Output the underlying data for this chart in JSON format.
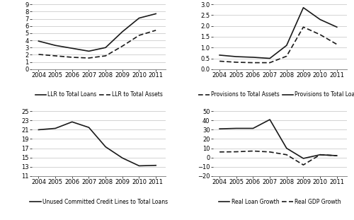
{
  "years": [
    2004,
    2005,
    2006,
    2007,
    2008,
    2009,
    2010,
    2011
  ],
  "panel1": {
    "llr_total_loans": [
      3.9,
      3.3,
      2.9,
      2.5,
      3.0,
      5.2,
      7.1,
      7.7
    ],
    "llr_total_assets": [
      2.05,
      1.85,
      1.65,
      1.55,
      1.85,
      3.2,
      4.7,
      5.4
    ],
    "ylim": [
      0,
      9
    ],
    "yticks": [
      0,
      1,
      2,
      3,
      4,
      5,
      6,
      7,
      8,
      9
    ],
    "legend": [
      [
        "LLR to Total Loans",
        "-"
      ],
      [
        "LLR to Total Assets",
        "--"
      ]
    ]
  },
  "panel2": {
    "prov_total_loans": [
      0.65,
      0.58,
      0.55,
      0.5,
      1.1,
      2.85,
      2.3,
      1.95
    ],
    "prov_total_assets": [
      0.37,
      0.32,
      0.3,
      0.3,
      0.6,
      1.95,
      1.6,
      1.15
    ],
    "ylim": [
      0,
      3
    ],
    "yticks": [
      0,
      0.5,
      1.0,
      1.5,
      2.0,
      2.5,
      3.0
    ],
    "legend": [
      [
        "Provisions to Total Assets",
        "--"
      ],
      [
        "Provisions to Total Loans",
        "-"
      ]
    ]
  },
  "panel3": {
    "credit_lines": [
      21.0,
      21.3,
      22.7,
      21.5,
      17.3,
      14.9,
      13.2,
      13.3
    ],
    "ylim": [
      11,
      25
    ],
    "yticks": [
      11,
      13,
      15,
      17,
      19,
      21,
      23,
      25
    ],
    "legend": [
      [
        "Unused Committed Credit Lines to Total Loans",
        "-"
      ]
    ]
  },
  "panel4": {
    "real_loan_growth": [
      31.0,
      31.5,
      31.5,
      41.0,
      10.0,
      -1.0,
      3.0,
      2.0
    ],
    "real_gdp_growth": [
      6.0,
      6.2,
      7.0,
      6.0,
      3.0,
      -8.0,
      3.0,
      2.0
    ],
    "ylim": [
      -20,
      50
    ],
    "yticks": [
      -20,
      -10,
      0,
      10,
      20,
      30,
      40,
      50
    ],
    "legend": [
      [
        "Real Loan Growth",
        "-"
      ],
      [
        "Real GDP Growth",
        "--"
      ]
    ]
  },
  "line_color": "#1a1a1a",
  "font_size": 6.0
}
